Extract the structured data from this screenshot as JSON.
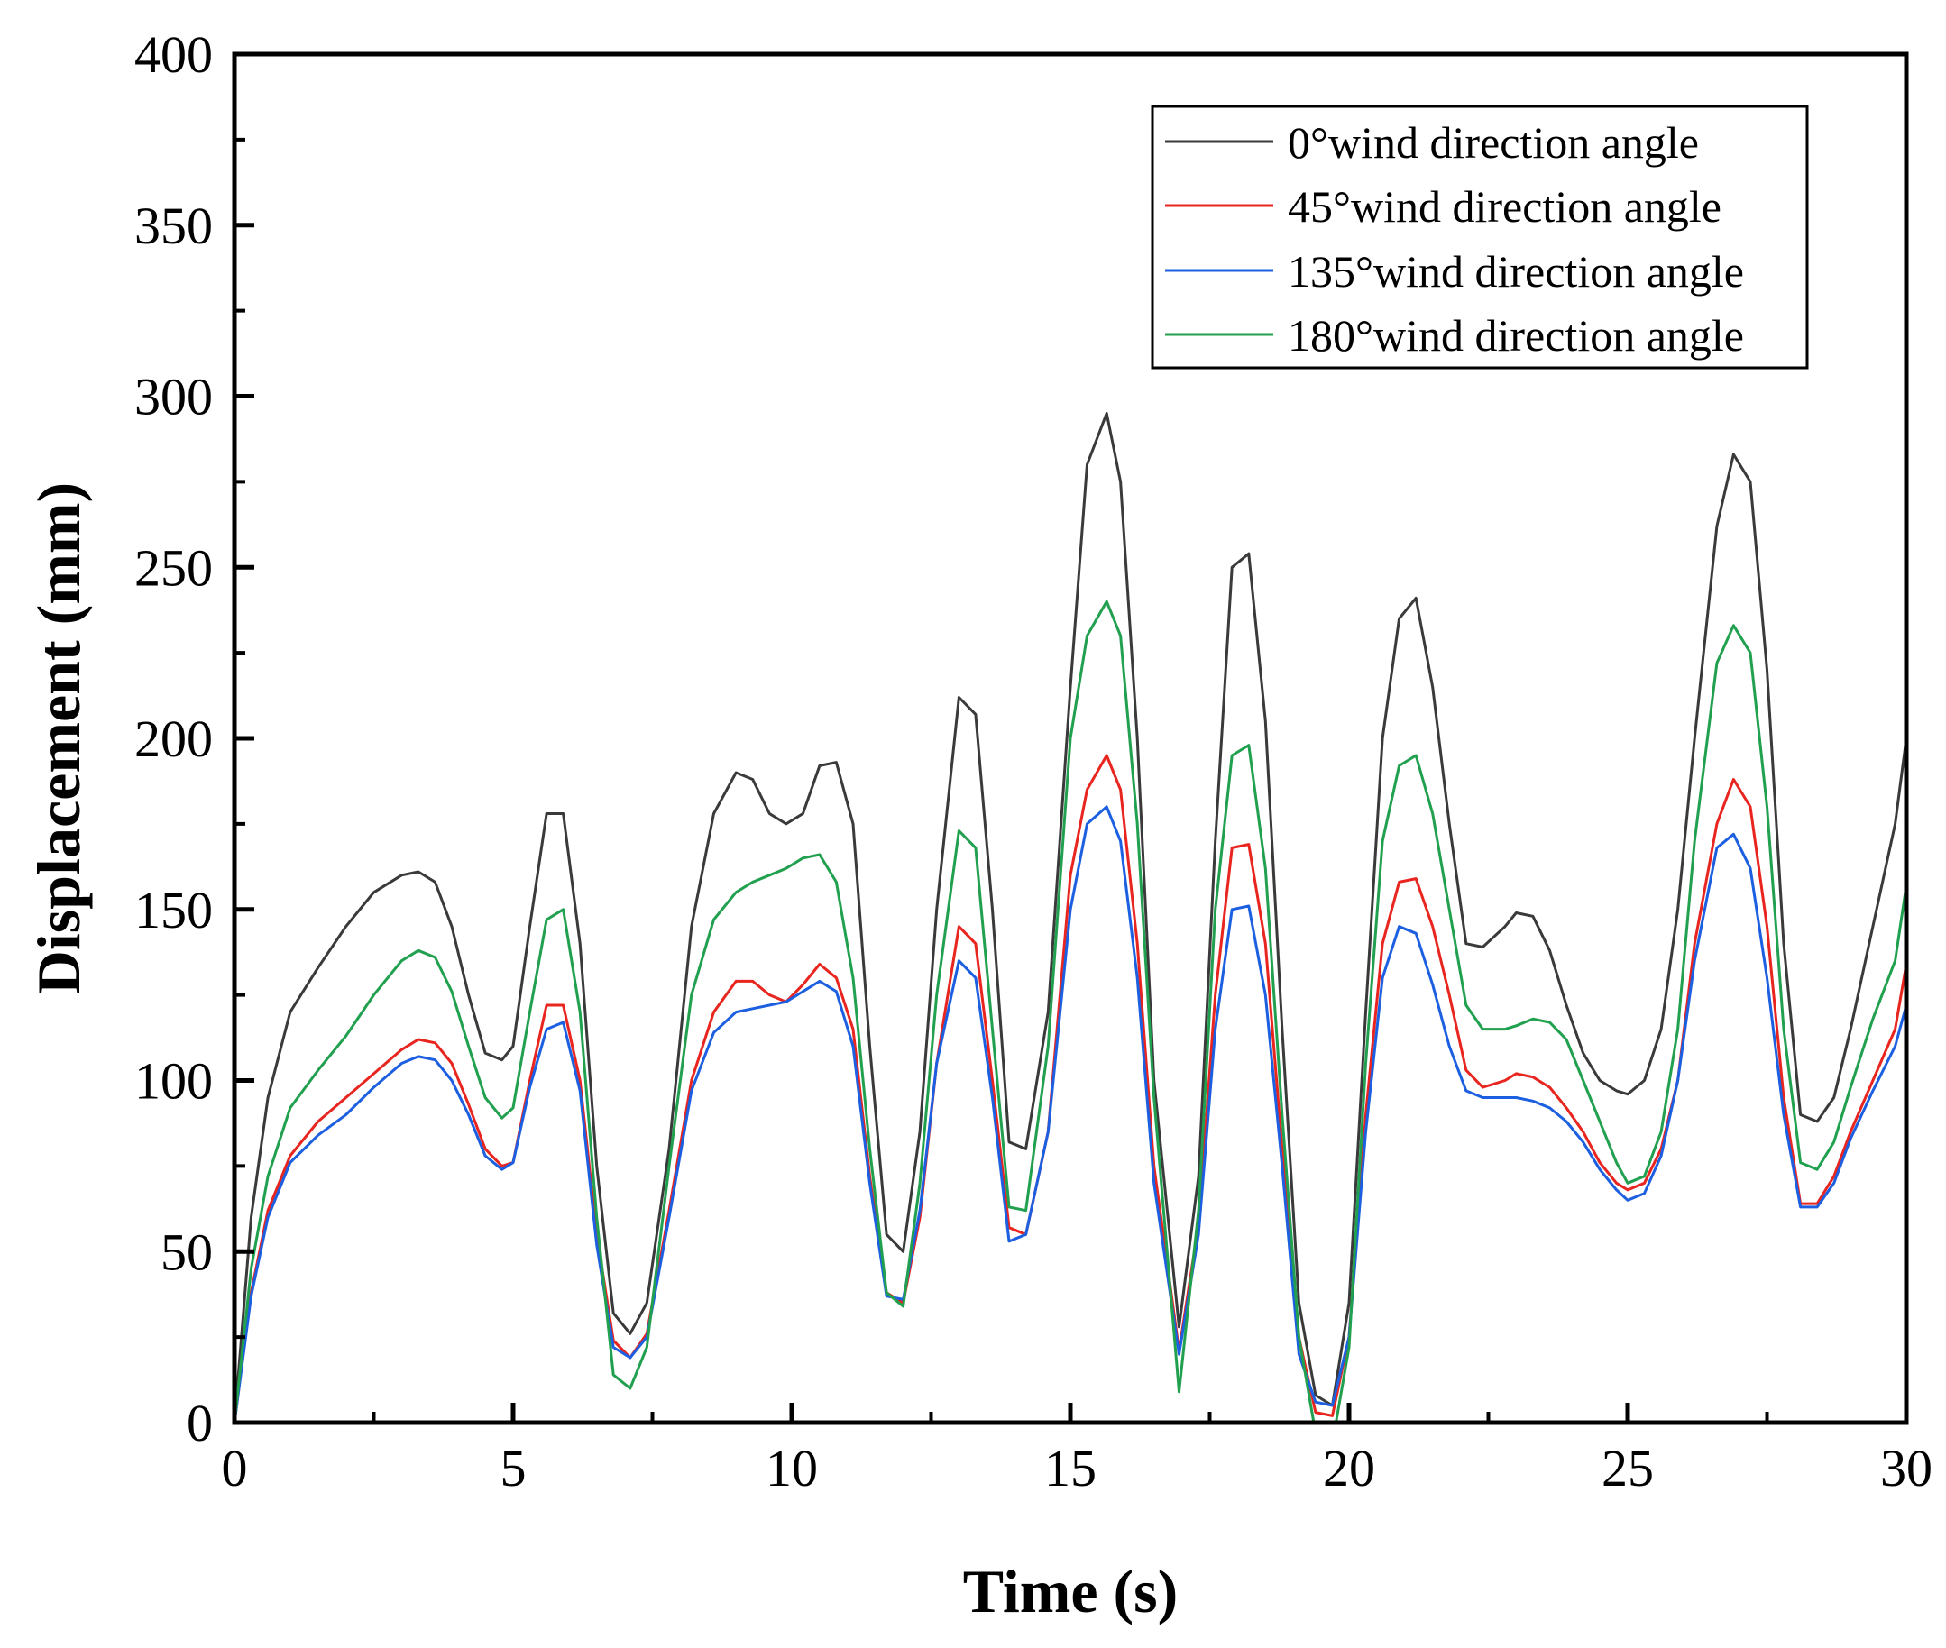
{
  "chart_data": {
    "type": "line",
    "title": "",
    "xlabel": "Time (s)",
    "ylabel": "Displacement (mm)",
    "xlim": [
      0,
      30
    ],
    "ylim": [
      0,
      400
    ],
    "xticks": [
      0,
      5,
      10,
      15,
      20,
      25,
      30
    ],
    "yticks": [
      0,
      50,
      100,
      150,
      200,
      250,
      300,
      350,
      400
    ],
    "grid": false,
    "legend_position": "top-right",
    "series": [
      {
        "name": "0°wind direction angle",
        "color": "#3a3a3a",
        "x": [
          0,
          0.3,
          0.6,
          1,
          1.5,
          2,
          2.5,
          3,
          3.3,
          3.6,
          3.9,
          4.2,
          4.5,
          4.8,
          5,
          5.3,
          5.6,
          5.9,
          6.2,
          6.5,
          6.8,
          7.1,
          7.4,
          7.8,
          8.2,
          8.6,
          9.0,
          9.3,
          9.6,
          9.9,
          10.2,
          10.5,
          10.8,
          11.1,
          11.4,
          11.7,
          12.0,
          12.3,
          12.6,
          13.0,
          13.3,
          13.6,
          13.9,
          14.2,
          14.6,
          15.0,
          15.3,
          15.65,
          15.9,
          16.2,
          16.5,
          16.95,
          17.3,
          17.6,
          17.9,
          18.2,
          18.5,
          18.8,
          19.1,
          19.4,
          19.7,
          20.0,
          20.3,
          20.6,
          20.9,
          21.2,
          21.5,
          21.8,
          22.1,
          22.4,
          22.8,
          23.0,
          23.3,
          23.6,
          23.9,
          24.2,
          24.5,
          24.8,
          25.0,
          25.3,
          25.6,
          25.9,
          26.2,
          26.6,
          26.9,
          27.2,
          27.5,
          27.8,
          28.1,
          28.4,
          28.7,
          29.0,
          29.4,
          29.8,
          30
        ],
        "values": [
          0,
          60,
          95,
          120,
          133,
          145,
          155,
          160,
          161,
          158,
          145,
          125,
          108,
          106,
          110,
          145,
          178,
          178,
          140,
          75,
          32,
          26,
          35,
          80,
          145,
          178,
          190,
          188,
          178,
          175,
          178,
          192,
          193,
          175,
          110,
          55,
          50,
          85,
          150,
          212,
          207,
          150,
          82,
          80,
          120,
          215,
          280,
          295,
          275,
          200,
          100,
          28,
          72,
          170,
          250,
          254,
          205,
          115,
          35,
          8,
          5,
          35,
          120,
          200,
          235,
          241,
          215,
          175,
          140,
          139,
          145,
          149,
          148,
          138,
          122,
          108,
          100,
          97,
          96,
          100,
          115,
          150,
          200,
          262,
          283,
          275,
          220,
          140,
          90,
          88,
          95,
          115,
          145,
          175,
          200
        ]
      },
      {
        "name": "45°wind direction angle",
        "color": "#e8251f",
        "x": [
          0,
          0.3,
          0.6,
          1,
          1.5,
          2,
          2.5,
          3,
          3.3,
          3.6,
          3.9,
          4.2,
          4.5,
          4.8,
          5,
          5.3,
          5.6,
          5.9,
          6.2,
          6.5,
          6.8,
          7.1,
          7.4,
          7.8,
          8.2,
          8.6,
          9.0,
          9.3,
          9.6,
          9.9,
          10.2,
          10.5,
          10.8,
          11.1,
          11.4,
          11.7,
          12.0,
          12.3,
          12.6,
          13.0,
          13.3,
          13.6,
          13.9,
          14.2,
          14.6,
          15.0,
          15.3,
          15.65,
          15.9,
          16.2,
          16.5,
          16.95,
          17.3,
          17.6,
          17.9,
          18.2,
          18.5,
          18.8,
          19.1,
          19.4,
          19.7,
          20.0,
          20.3,
          20.6,
          20.9,
          21.2,
          21.5,
          21.8,
          22.1,
          22.4,
          22.8,
          23.0,
          23.3,
          23.6,
          23.9,
          24.2,
          24.5,
          24.8,
          25.0,
          25.3,
          25.6,
          25.9,
          26.2,
          26.6,
          26.9,
          27.2,
          27.5,
          27.8,
          28.1,
          28.4,
          28.7,
          29.0,
          29.4,
          29.8,
          30
        ],
        "values": [
          0,
          38,
          62,
          78,
          88,
          95,
          102,
          109,
          112,
          111,
          105,
          93,
          80,
          75,
          76,
          100,
          122,
          122,
          100,
          55,
          24,
          19,
          26,
          62,
          100,
          120,
          129,
          129,
          125,
          123,
          128,
          134,
          130,
          115,
          72,
          38,
          35,
          60,
          105,
          145,
          140,
          100,
          57,
          55,
          85,
          160,
          185,
          195,
          185,
          140,
          75,
          21,
          58,
          125,
          168,
          169,
          140,
          80,
          25,
          3,
          2,
          25,
          90,
          140,
          158,
          159,
          145,
          125,
          103,
          98,
          100,
          102,
          101,
          98,
          92,
          85,
          76,
          70,
          68,
          70,
          80,
          100,
          140,
          175,
          188,
          180,
          145,
          95,
          64,
          64,
          72,
          85,
          100,
          115,
          134
        ]
      },
      {
        "name": "135°wind direction angle",
        "color": "#1c5fe0",
        "x": [
          0,
          0.3,
          0.6,
          1,
          1.5,
          2,
          2.5,
          3,
          3.3,
          3.6,
          3.9,
          4.2,
          4.5,
          4.8,
          5,
          5.3,
          5.6,
          5.9,
          6.2,
          6.5,
          6.8,
          7.1,
          7.4,
          7.8,
          8.2,
          8.6,
          9.0,
          9.3,
          9.6,
          9.9,
          10.2,
          10.5,
          10.8,
          11.1,
          11.4,
          11.7,
          12.0,
          12.3,
          12.6,
          13.0,
          13.3,
          13.6,
          13.9,
          14.2,
          14.6,
          15.0,
          15.3,
          15.65,
          15.9,
          16.2,
          16.5,
          16.95,
          17.3,
          17.6,
          17.9,
          18.2,
          18.5,
          18.8,
          19.1,
          19.4,
          19.7,
          20.0,
          20.3,
          20.6,
          20.9,
          21.2,
          21.5,
          21.8,
          22.1,
          22.4,
          22.8,
          23.0,
          23.3,
          23.6,
          23.9,
          24.2,
          24.5,
          24.8,
          25.0,
          25.3,
          25.6,
          25.9,
          26.2,
          26.6,
          26.9,
          27.2,
          27.5,
          27.8,
          28.1,
          28.4,
          28.7,
          29.0,
          29.4,
          29.8,
          30
        ],
        "values": [
          0,
          37,
          60,
          76,
          84,
          90,
          98,
          105,
          107,
          106,
          100,
          90,
          78,
          74,
          76,
          98,
          115,
          117,
          97,
          52,
          22,
          19,
          25,
          60,
          97,
          114,
          120,
          121,
          122,
          123,
          126,
          129,
          126,
          110,
          70,
          37,
          36,
          62,
          105,
          135,
          130,
          95,
          53,
          55,
          85,
          150,
          175,
          180,
          170,
          130,
          70,
          20,
          55,
          115,
          150,
          151,
          125,
          75,
          20,
          6,
          5,
          25,
          85,
          130,
          145,
          143,
          128,
          110,
          97,
          95,
          95,
          95,
          94,
          92,
          88,
          82,
          74,
          68,
          65,
          67,
          78,
          100,
          135,
          168,
          172,
          162,
          130,
          90,
          63,
          63,
          70,
          83,
          97,
          110,
          122
        ]
      },
      {
        "name": "180°wind direction angle",
        "color": "#21a04f",
        "x": [
          0,
          0.3,
          0.6,
          1,
          1.5,
          2,
          2.5,
          3,
          3.3,
          3.6,
          3.9,
          4.2,
          4.5,
          4.8,
          5,
          5.3,
          5.6,
          5.9,
          6.2,
          6.5,
          6.8,
          7.1,
          7.4,
          7.8,
          8.2,
          8.6,
          9.0,
          9.3,
          9.6,
          9.9,
          10.2,
          10.5,
          10.8,
          11.1,
          11.4,
          11.7,
          12.0,
          12.3,
          12.6,
          13.0,
          13.3,
          13.6,
          13.9,
          14.2,
          14.6,
          15.0,
          15.3,
          15.65,
          15.9,
          16.2,
          16.5,
          16.95,
          17.3,
          17.6,
          17.9,
          18.2,
          18.5,
          18.8,
          19.1,
          19.4,
          19.7,
          20.0,
          20.3,
          20.6,
          20.9,
          21.2,
          21.5,
          21.8,
          22.1,
          22.4,
          22.8,
          23.0,
          23.3,
          23.6,
          23.9,
          24.2,
          24.5,
          24.8,
          25.0,
          25.3,
          25.6,
          25.9,
          26.2,
          26.6,
          26.9,
          27.2,
          27.5,
          27.8,
          28.1,
          28.4,
          28.7,
          29.0,
          29.4,
          29.8,
          30
        ],
        "values": [
          0,
          45,
          72,
          92,
          103,
          113,
          125,
          135,
          138,
          136,
          126,
          110,
          95,
          89,
          92,
          120,
          147,
          150,
          120,
          60,
          14,
          10,
          22,
          75,
          125,
          147,
          155,
          158,
          160,
          162,
          165,
          166,
          158,
          130,
          80,
          38,
          34,
          70,
          125,
          173,
          168,
          115,
          63,
          62,
          110,
          200,
          230,
          240,
          230,
          175,
          95,
          9,
          62,
          150,
          195,
          198,
          162,
          90,
          25,
          -3,
          -6,
          22,
          105,
          170,
          192,
          195,
          178,
          150,
          122,
          115,
          115,
          116,
          118,
          117,
          112,
          100,
          88,
          76,
          70,
          72,
          85,
          115,
          170,
          222,
          233,
          225,
          180,
          115,
          76,
          74,
          82,
          98,
          118,
          135,
          157
        ]
      }
    ]
  }
}
